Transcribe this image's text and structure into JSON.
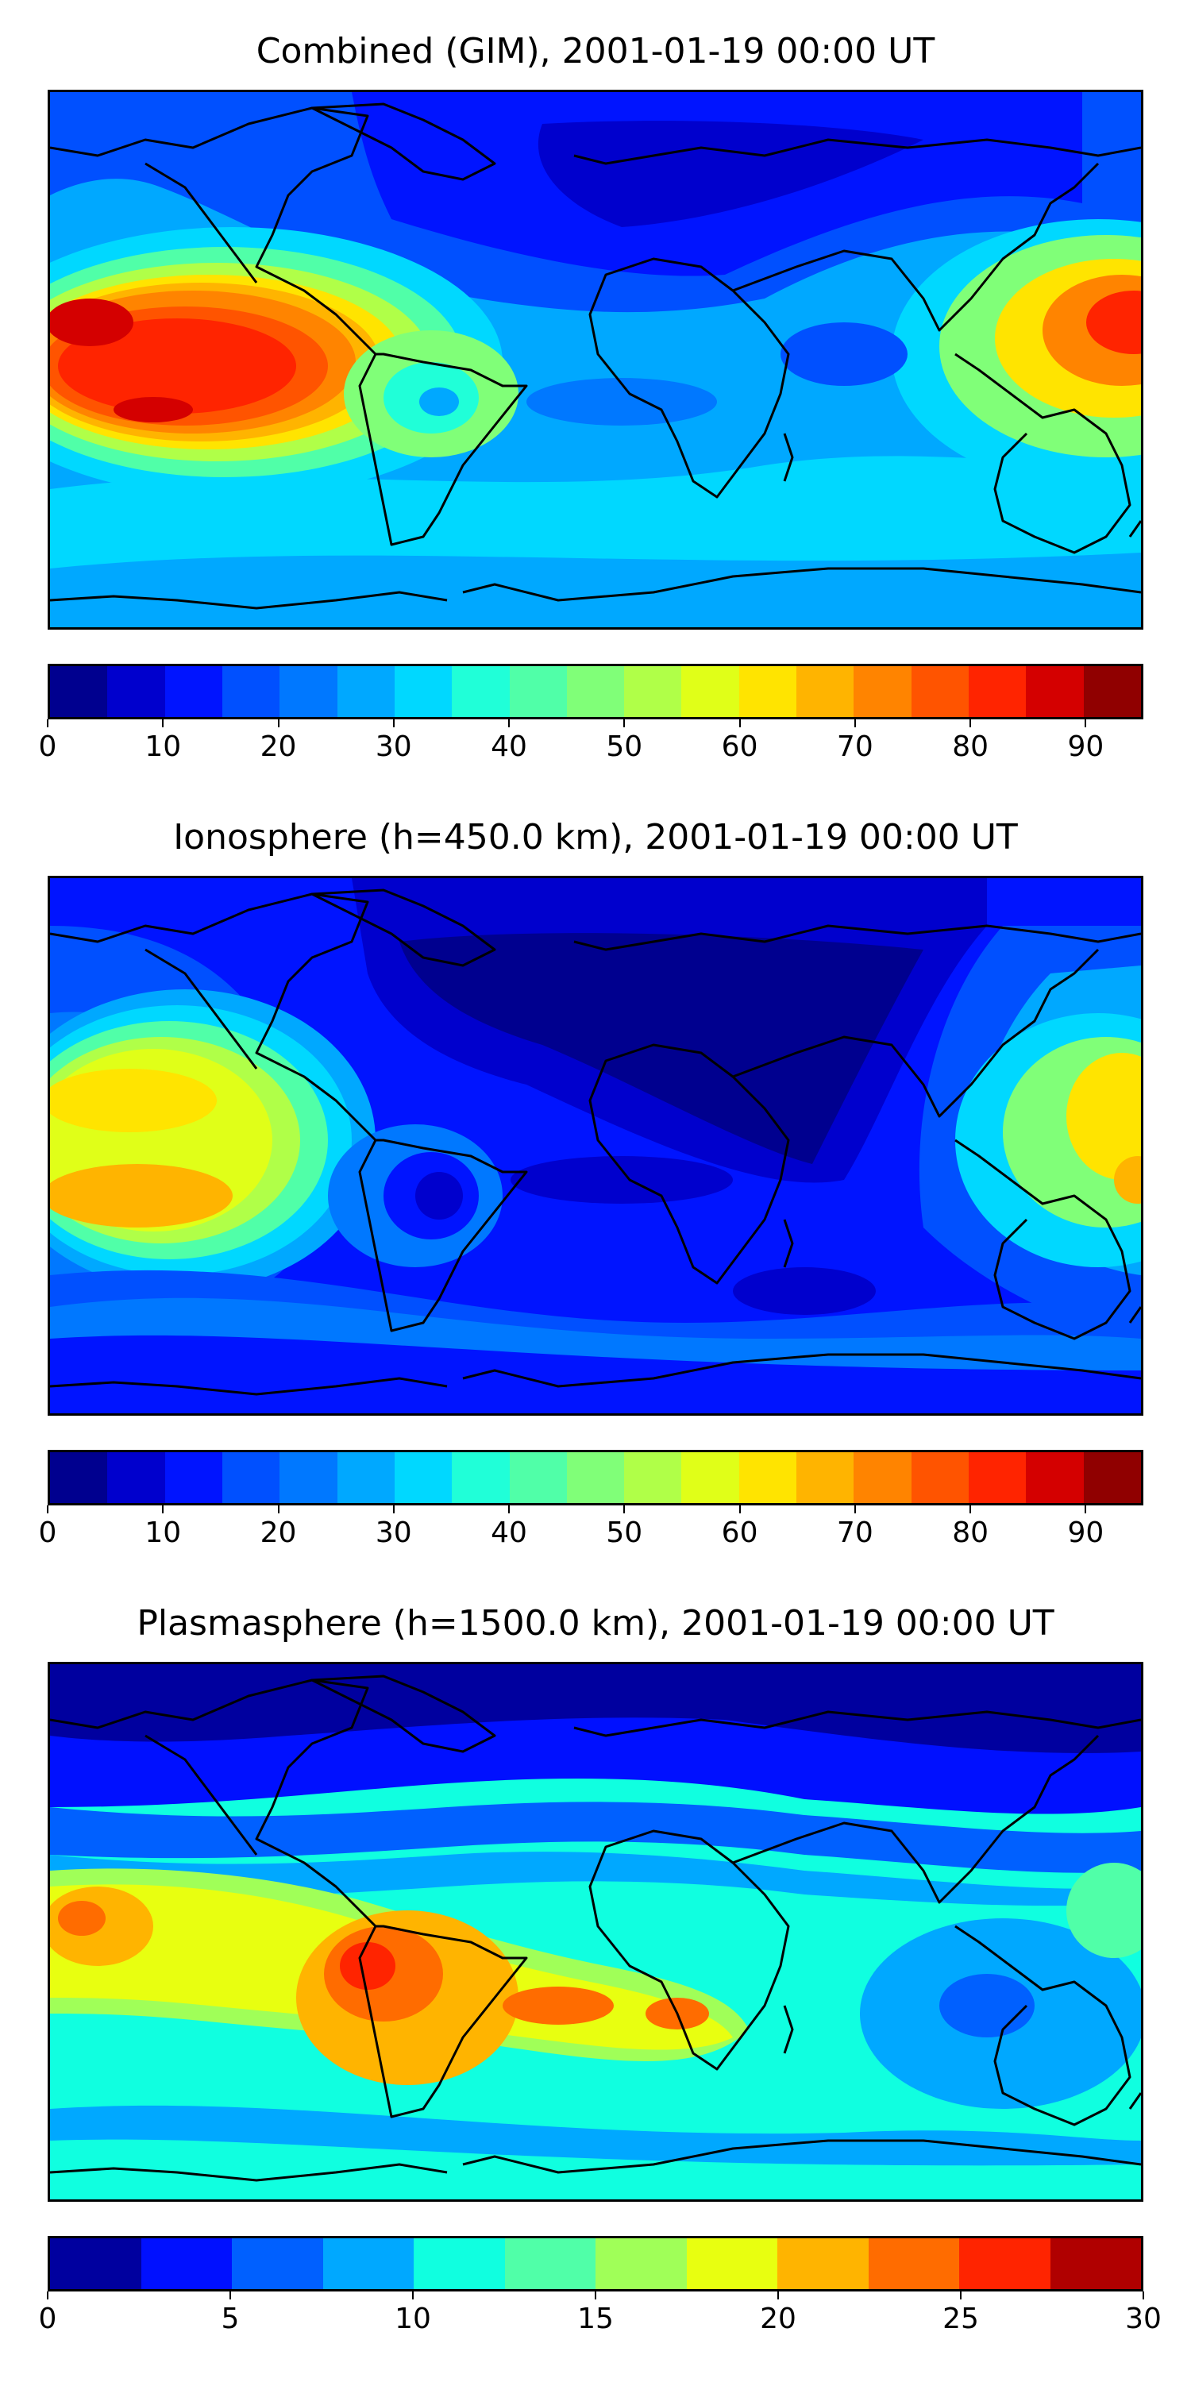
{
  "panels": [
    {
      "title": "Combined (GIM), 2001-01-19 00:00 UT",
      "colorbar": {
        "ticks": [
          "0",
          "10",
          "20",
          "30",
          "40",
          "50",
          "60",
          "70",
          "80",
          "90"
        ],
        "tick_values": [
          0,
          10,
          20,
          30,
          40,
          50,
          60,
          70,
          80,
          90
        ],
        "min": 0,
        "max": 95,
        "step": 5,
        "colors": [
          "#00008f",
          "#0000cd",
          "#0014ff",
          "#0050ff",
          "#0078ff",
          "#00a8ff",
          "#00d8ff",
          "#20ffd8",
          "#50ffa8",
          "#80ff78",
          "#b0ff48",
          "#e0ff18",
          "#ffe400",
          "#ffb400",
          "#ff8400",
          "#ff5400",
          "#ff2400",
          "#d40000",
          "#900000"
        ]
      }
    },
    {
      "title": "Ionosphere  (h=450.0 km), 2001-01-19 00:00 UT",
      "colorbar": {
        "ticks": [
          "0",
          "10",
          "20",
          "30",
          "40",
          "50",
          "60",
          "70",
          "80",
          "90"
        ],
        "tick_values": [
          0,
          10,
          20,
          30,
          40,
          50,
          60,
          70,
          80,
          90
        ],
        "min": 0,
        "max": 95,
        "step": 5,
        "colors": [
          "#00008f",
          "#0000cd",
          "#0014ff",
          "#0050ff",
          "#0078ff",
          "#00a8ff",
          "#00d8ff",
          "#20ffd8",
          "#50ffa8",
          "#80ff78",
          "#b0ff48",
          "#e0ff18",
          "#ffe400",
          "#ffb400",
          "#ff8400",
          "#ff5400",
          "#ff2400",
          "#d40000",
          "#900000"
        ]
      }
    },
    {
      "title": "Plasmasphere (h=1500.0 km), 2001-01-19 00:00 UT",
      "colorbar": {
        "ticks": [
          "0",
          "5",
          "10",
          "15",
          "20",
          "25",
          "30"
        ],
        "tick_values": [
          0,
          5,
          10,
          15,
          20,
          25,
          30
        ],
        "min": 0,
        "max": 30,
        "step": 2.5,
        "colors": [
          "#00009f",
          "#0010ff",
          "#0060ff",
          "#00a8ff",
          "#10ffe0",
          "#50ffa8",
          "#a0ff58",
          "#e8ff10",
          "#ffb400",
          "#ff6c00",
          "#ff2400",
          "#b00000"
        ]
      }
    }
  ]
}
